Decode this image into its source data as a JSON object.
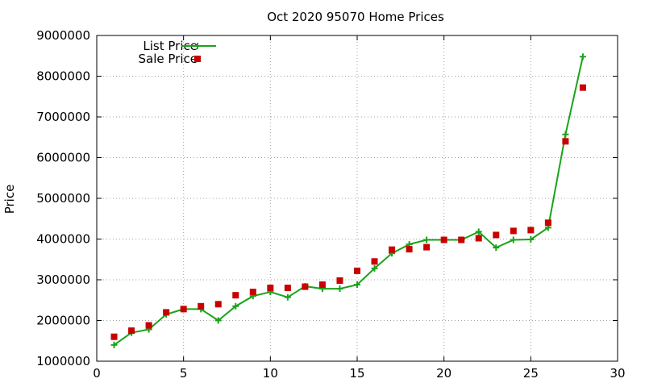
{
  "chart_data": {
    "type": "line",
    "title": "Oct 2020 95070 Home Prices",
    "xlabel": "",
    "ylabel": "Price",
    "xlim": [
      0,
      30
    ],
    "ylim": [
      1000000,
      9000000
    ],
    "xticks": [
      0,
      5,
      10,
      15,
      20,
      25,
      30
    ],
    "yticks": [
      1000000,
      2000000,
      3000000,
      4000000,
      5000000,
      6000000,
      7000000,
      8000000,
      9000000
    ],
    "grid": true,
    "legend_position": "top-left",
    "series": [
      {
        "name": "List Price",
        "style": "line+cross",
        "color": "#1aa31a",
        "x": [
          1,
          2,
          3,
          4,
          5,
          6,
          7,
          8,
          9,
          10,
          11,
          12,
          13,
          14,
          15,
          16,
          17,
          18,
          19,
          20,
          21,
          22,
          23,
          24,
          25,
          26,
          27,
          28
        ],
        "y": [
          1400000,
          1700000,
          1780000,
          2150000,
          2280000,
          2280000,
          2000000,
          2350000,
          2600000,
          2700000,
          2570000,
          2840000,
          2780000,
          2780000,
          2880000,
          3280000,
          3650000,
          3870000,
          3980000,
          3980000,
          3980000,
          4180000,
          3790000,
          3980000,
          3990000,
          4280000,
          6570000,
          8480000
        ]
      },
      {
        "name": "Sale Price",
        "style": "square",
        "color": "#c80000",
        "x": [
          1,
          2,
          3,
          4,
          5,
          6,
          7,
          8,
          9,
          10,
          11,
          12,
          13,
          14,
          15,
          16,
          17,
          18,
          19,
          20,
          21,
          22,
          23,
          24,
          25,
          26,
          27,
          28
        ],
        "y": [
          1600000,
          1750000,
          1880000,
          2200000,
          2280000,
          2350000,
          2400000,
          2620000,
          2700000,
          2800000,
          2800000,
          2830000,
          2880000,
          2980000,
          3220000,
          3450000,
          3740000,
          3750000,
          3800000,
          3980000,
          3980000,
          4020000,
          4100000,
          4200000,
          4220000,
          4400000,
          6400000,
          7720000
        ]
      }
    ]
  }
}
